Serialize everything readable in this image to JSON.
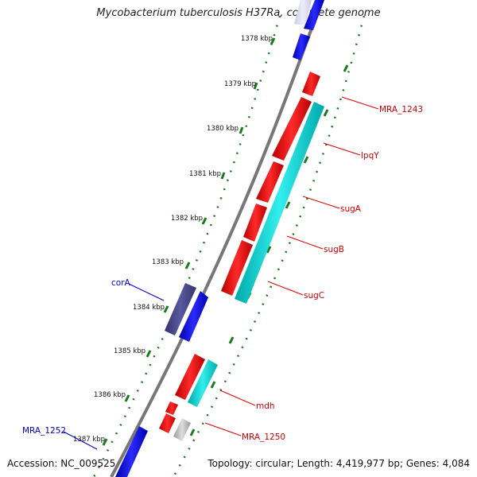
{
  "title": "Mycobacterium tuberculosis H37Ra, complete genome",
  "footer": {
    "accession": "Accession: NC_009525",
    "summary": "Topology: circular; Length: 4,419,977 bp; Genes: 4,084"
  },
  "colors": {
    "backbone": "#888888",
    "ticks": "#1a7a1a",
    "forward_gene": "#0000ee",
    "selected_gene": "#444488",
    "reverse_gene": "#ee0000",
    "cyan_feature": "#00cccc",
    "grey_feature": "#bbbbbb",
    "label_red": "#cc0000",
    "label_blue": "#0000cc"
  },
  "tick_labels": [
    "1378 kbp",
    "1379 kbp",
    "1380 kbp",
    "1381 kbp",
    "1382 kbp",
    "1383 kbp",
    "1384 kbp",
    "1385 kbp",
    "1386 kbp",
    "1387 kbp"
  ],
  "gene_labels": [
    {
      "name": "MRA_1243",
      "color": "red"
    },
    {
      "name": "lpqY",
      "color": "red"
    },
    {
      "name": "sugA",
      "color": "red"
    },
    {
      "name": "sugB",
      "color": "red"
    },
    {
      "name": "sugC",
      "color": "red"
    },
    {
      "name": "corA",
      "color": "blue"
    },
    {
      "name": "mdh",
      "color": "red"
    },
    {
      "name": "MRA_1250",
      "color": "red"
    },
    {
      "name": "MRA_1252",
      "color": "blue"
    }
  ]
}
